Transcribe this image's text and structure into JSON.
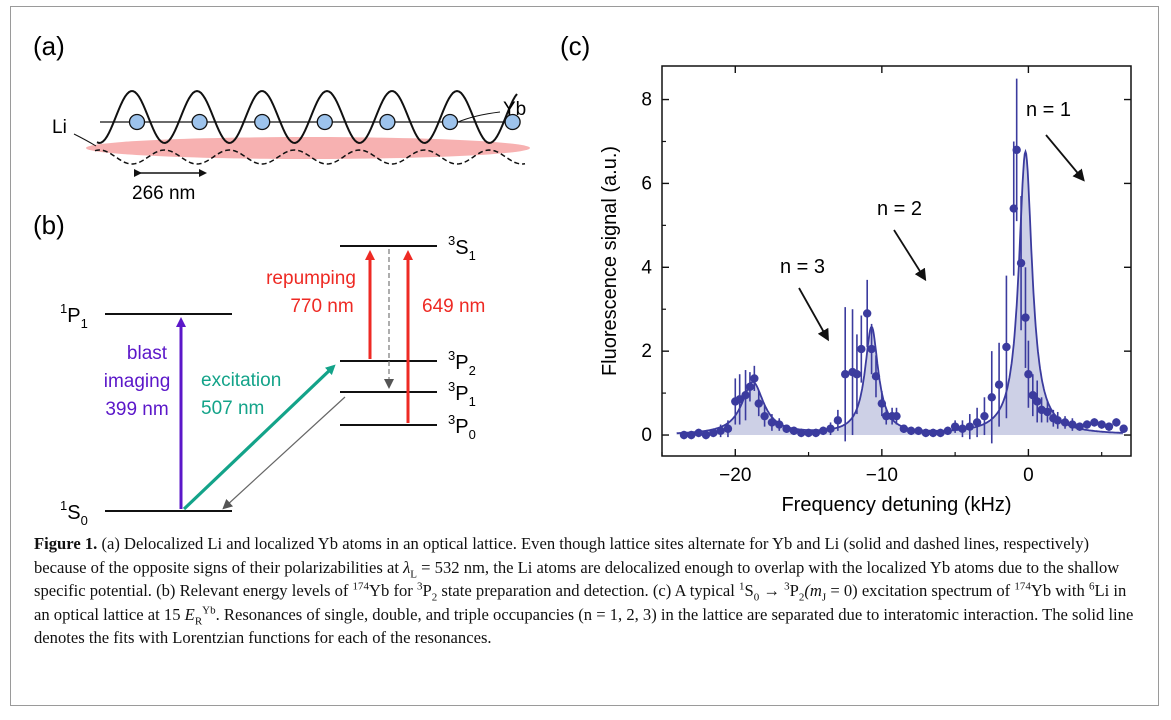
{
  "panels": {
    "a": {
      "label": "(a)",
      "li_label": "Li",
      "yb_label": "Yb",
      "spacing_label": "266 nm"
    },
    "b": {
      "label": "(b)",
      "levels": [
        {
          "id": "1S0",
          "base": "S",
          "sup": "1",
          "sub": "0"
        },
        {
          "id": "1P1",
          "base": "P",
          "sup": "1",
          "sub": "1"
        },
        {
          "id": "3P0",
          "base": "P",
          "sup": "3",
          "sub": "0"
        },
        {
          "id": "3P1",
          "base": "P",
          "sup": "3",
          "sub": "1"
        },
        {
          "id": "3P2",
          "base": "P",
          "sup": "3",
          "sub": "2"
        },
        {
          "id": "3S1",
          "base": "S",
          "sup": "3",
          "sub": "1"
        }
      ],
      "transitions": {
        "blast_line1": "blast",
        "blast_line2": "imaging",
        "blast_line3": "399 nm",
        "excitation_line1": "excitation",
        "excitation_line2": "507 nm",
        "repump_line1": "repumping",
        "repump_line2": "770 nm",
        "repump_649": "649 nm"
      },
      "colors": {
        "blast": "#5b17c9",
        "excitation": "#13a389",
        "repump": "#ee2a24"
      }
    },
    "c": {
      "label": "(c)"
    }
  },
  "chart_data": {
    "type": "scatter",
    "xlabel": "Frequency detuning (kHz)",
    "ylabel": "Fluorescence signal (a.u.)",
    "xlim": [
      -25,
      7
    ],
    "ylim": [
      -0.5,
      8.8
    ],
    "xticks": [
      -20,
      -10,
      0
    ],
    "yticks": [
      0,
      2,
      4,
      6,
      8
    ],
    "grid": false,
    "colors": {
      "points": "#3b3b9e",
      "fill": "#cdd0e6",
      "fit": "#3b3b9e"
    },
    "annotations": [
      {
        "text": "n = 1",
        "x": 0.3,
        "y": 8.0
      },
      {
        "text": "n = 2",
        "x": -12.5,
        "y": 6.0
      },
      {
        "text": "n = 3",
        "x": -20.5,
        "y": 4.0
      }
    ],
    "fit": {
      "peaks": [
        {
          "x0": -18.8,
          "amp": 1.25,
          "gamma": 0.9
        },
        {
          "x0": -10.7,
          "amp": 2.55,
          "gamma": 0.55
        },
        {
          "x0": -0.2,
          "amp": 6.75,
          "gamma": 0.55
        }
      ]
    },
    "series": [
      {
        "x": [
          -23.5,
          -23.0,
          -22.5,
          -22.0,
          -21.5,
          -21.0,
          -20.5,
          -20.0,
          -19.7,
          -19.3,
          -19.0,
          -18.7,
          -18.4,
          -18.0,
          -17.5,
          -17.0,
          -16.5,
          -16.0,
          -15.5,
          -15.0,
          -14.5,
          -14.0,
          -13.5,
          -13.0,
          -12.5,
          -12.0,
          -11.7,
          -11.4,
          -11.0,
          -10.7,
          -10.4,
          -10.0,
          -9.7,
          -9.3,
          -9.0,
          -8.5,
          -8.0,
          -7.5,
          -7.0,
          -6.5,
          -6.0,
          -5.5,
          -5.0,
          -4.5,
          -4.0,
          -3.5,
          -3.0,
          -2.5,
          -2.0,
          -1.5,
          -1.0,
          -0.8,
          -0.5,
          -0.2,
          0.0,
          0.3,
          0.6,
          0.9,
          1.3,
          1.7,
          2.0,
          2.5,
          3.0,
          3.5,
          4.0,
          4.5,
          5.0,
          5.5,
          6.0,
          6.5
        ],
        "y": [
          0.0,
          0.0,
          0.05,
          0.0,
          0.05,
          0.1,
          0.15,
          0.8,
          0.85,
          0.95,
          1.15,
          1.35,
          0.75,
          0.45,
          0.3,
          0.25,
          0.15,
          0.1,
          0.05,
          0.05,
          0.05,
          0.1,
          0.15,
          0.35,
          1.45,
          1.5,
          1.45,
          2.05,
          2.9,
          2.05,
          1.4,
          0.75,
          0.45,
          0.45,
          0.45,
          0.15,
          0.1,
          0.1,
          0.05,
          0.05,
          0.05,
          0.1,
          0.2,
          0.15,
          0.2,
          0.3,
          0.45,
          0.9,
          1.2,
          2.1,
          5.4,
          6.8,
          4.1,
          2.8,
          1.45,
          0.95,
          0.8,
          0.6,
          0.55,
          0.4,
          0.35,
          0.3,
          0.25,
          0.2,
          0.25,
          0.3,
          0.25,
          0.2,
          0.3,
          0.15
        ],
        "err": [
          0.1,
          0.1,
          0.1,
          0.1,
          0.1,
          0.15,
          0.2,
          0.55,
          0.6,
          0.6,
          0.35,
          0.3,
          0.3,
          0.25,
          0.2,
          0.15,
          0.1,
          0.1,
          0.1,
          0.1,
          0.1,
          0.1,
          0.15,
          0.25,
          1.6,
          1.5,
          0.95,
          0.8,
          0.8,
          0.6,
          0.5,
          0.3,
          0.2,
          0.2,
          0.2,
          0.1,
          0.1,
          0.1,
          0.1,
          0.1,
          0.1,
          0.1,
          0.15,
          0.2,
          0.3,
          0.35,
          0.45,
          1.1,
          1.0,
          1.7,
          1.6,
          1.7,
          1.6,
          1.2,
          0.8,
          0.5,
          0.5,
          0.3,
          0.25,
          0.2,
          0.2,
          0.15,
          0.15,
          0.1,
          0.1,
          0.1,
          0.1,
          0.1,
          0.1,
          0.1
        ]
      }
    ]
  },
  "caption": {
    "figure_label": "Figure 1.",
    "text_1": " (a) Delocalized Li and localized Yb atoms in an optical lattice. Even though lattice sites alternate for Yb and Li (solid and dashed lines, respectively) because of the opposite signs of their polarizabilities at ",
    "lambda": "λ",
    "lambda_sub": "L",
    "text_2": " = 532 nm, the Li atoms are delocalized enough to overlap with the localized Yb atoms due to the shallow specific potential. (b) Relevant energy levels of ",
    "yb_mass": "174",
    "yb": "Yb",
    "text_3": " for ",
    "p2_sup": "3",
    "p2_base": "P",
    "p2_sub": "2",
    "text_4": " state preparation and detection. (c) A typical ",
    "s0_sup": "1",
    "s0_base": "S",
    "s0_sub": "0",
    "arrow": " → ",
    "p2b_sup": "3",
    "p2b_base": "P",
    "p2b_sub": "2",
    "mj": "(m",
    "mj_sub": "J",
    "mj_rest": " = 0)",
    "text_5": " excitation spectrum of ",
    "yb_mass2": "174",
    "yb2": "Yb",
    "text_6": " with ",
    "li_mass": "6",
    "li": "Li",
    "text_7": " in an optical lattice at 15 ",
    "er": "E",
    "er_sub": "R",
    "er_sup": "Yb",
    "text_8": ". Resonances of single, double, and triple occupancies (n = 1, 2, 3) in the lattice are separated due to interatomic interaction. The solid line denotes the fits with Lorentzian functions for each of the resonances."
  }
}
